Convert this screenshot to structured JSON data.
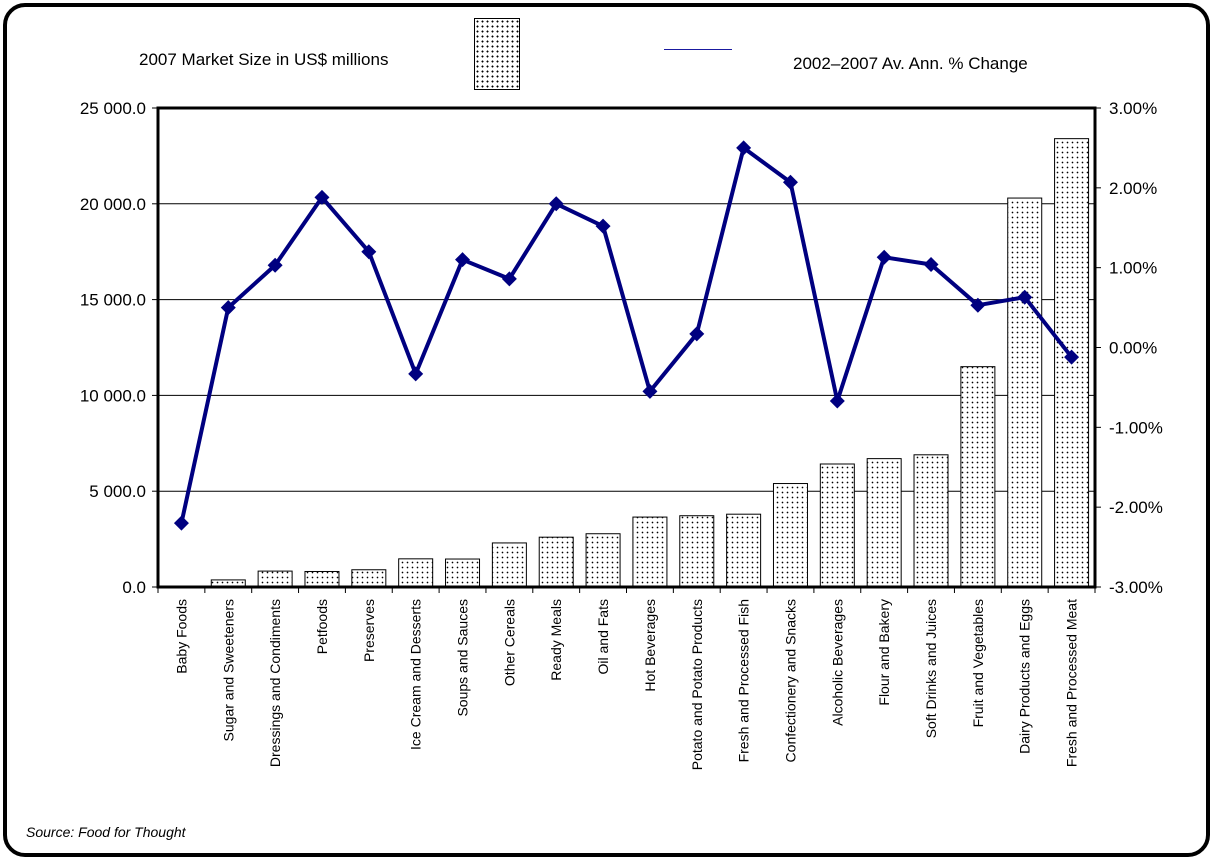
{
  "legend": {
    "bar_label": "2007 Market Size in US$ millions",
    "line_label": "2002–2007 Av. Ann. % Change"
  },
  "source": "Source: Food for Thought",
  "colors": {
    "line": "#000080",
    "bar_fill": "#ffffff",
    "bar_dots": "#000000",
    "grid": "#000000"
  },
  "chart_data": {
    "type": "bar",
    "categories": [
      "Baby Foods",
      "Sugar and Sweeteners",
      "Dressings and Condiments",
      "Petfoods",
      "Preserves",
      "Ice Cream and Desserts",
      "Soups and Sauces",
      "Other Cereals",
      "Ready Meals",
      "Oil and Fats",
      "Hot Beverages",
      "Potato and Potato Products",
      "Fresh and Processed Fish",
      "Confectionery and Snacks",
      "Alcoholic Beverages",
      "Flour and Bakery",
      "Soft Drinks and Juices",
      "Fruit and Vegetables",
      "Dairy Products and Eggs",
      "Fresh and Processed Meat"
    ],
    "series": [
      {
        "name": "2007 Market Size in US$ millions",
        "type": "bar",
        "axis": "left",
        "values": [
          50,
          370,
          830,
          810,
          900,
          1470,
          1460,
          2300,
          2600,
          2780,
          3650,
          3720,
          3800,
          5400,
          6420,
          6700,
          6900,
          11500,
          20300,
          23400
        ]
      },
      {
        "name": "2002–2007 Av. Ann. % Change",
        "type": "line",
        "axis": "right",
        "values": [
          -2.2,
          0.5,
          1.03,
          1.88,
          1.2,
          -0.33,
          1.1,
          0.86,
          1.8,
          1.52,
          -0.55,
          0.17,
          2.5,
          2.07,
          -0.67,
          1.13,
          1.04,
          0.53,
          0.63,
          -0.12
        ]
      }
    ],
    "y_left": {
      "min": 0,
      "max": 25000,
      "step": 5000,
      "tick_labels": [
        "0.0",
        "5 000.0",
        "10 000.0",
        "15 000.0",
        "20 000.0",
        "25 000.0"
      ]
    },
    "y_right": {
      "min": -3,
      "max": 3,
      "step": 1,
      "tick_labels": [
        "-3.00%",
        "-2.00%",
        "-1.00%",
        "0.00%",
        "1.00%",
        "2.00%",
        "3.00%"
      ]
    },
    "grid": true,
    "legend_position": "top"
  }
}
